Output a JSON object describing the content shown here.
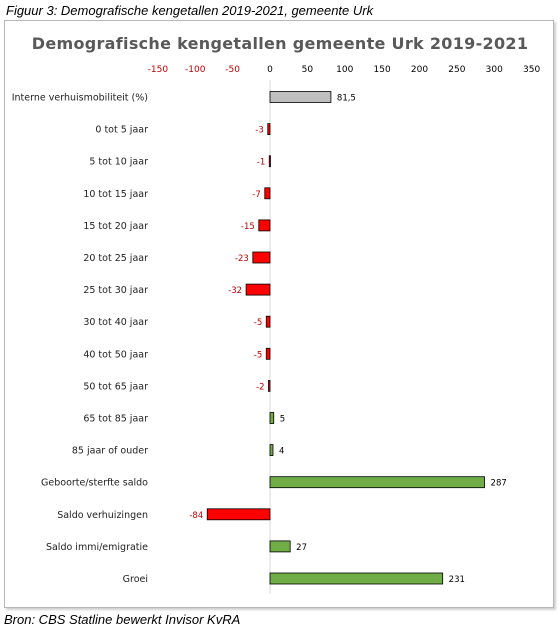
{
  "figure": {
    "caption": "Figuur 3: Demografische kengetallen 2019-2021, gemeente Urk",
    "source": "Bron: CBS Statline bewerkt Invisor KvRA"
  },
  "chart_data": {
    "type": "bar",
    "orientation": "horizontal",
    "title": "Demografische kengetallen gemeente Urk 2019-2021",
    "xlabel": "",
    "ylabel": "",
    "xlim": [
      -150,
      350
    ],
    "xticks": [
      -150,
      -100,
      -50,
      0,
      50,
      100,
      150,
      200,
      250,
      300,
      350
    ],
    "xtick_labels": [
      "-150",
      "-100",
      "-50",
      "0",
      "50",
      "100",
      "150",
      "200",
      "250",
      "300",
      "350"
    ],
    "x_axis_position": "top",
    "grid": false,
    "legend": "none",
    "categories": [
      "Interne verhuismobiliteit (%)",
      "0 tot 5 jaar",
      "5 tot 10 jaar",
      "10 tot 15 jaar",
      "15 tot 20 jaar",
      "20 tot 25 jaar",
      "25 tot 30 jaar",
      "30 tot 40 jaar",
      "40 tot 50 jaar",
      "50 tot 65 jaar",
      "65 tot 85 jaar",
      "85 jaar of ouder",
      "Geboorte/sterfte saldo",
      "Saldo verhuizingen",
      "Saldo immi/emigratie",
      "Groei"
    ],
    "values": [
      81.5,
      -3,
      -1,
      -7,
      -15,
      -23,
      -32,
      -5,
      -5,
      -2,
      5,
      4,
      287,
      -84,
      27,
      231
    ],
    "data_labels": [
      "81,5",
      "-3",
      "-1",
      "-7",
      "-15",
      "-23",
      "-32",
      "-5",
      "-5",
      "-2",
      "5",
      "4",
      "287",
      "-84",
      "27",
      "231"
    ],
    "colors": {
      "negative": "#ff0000",
      "positive": "#70ad47",
      "neutral": "#bfbfbf",
      "negative_text": "#c00000",
      "positive_text": "#000000",
      "outline": "#000000"
    },
    "neutral_categories": [
      "Interne verhuismobiliteit (%)"
    ]
  }
}
